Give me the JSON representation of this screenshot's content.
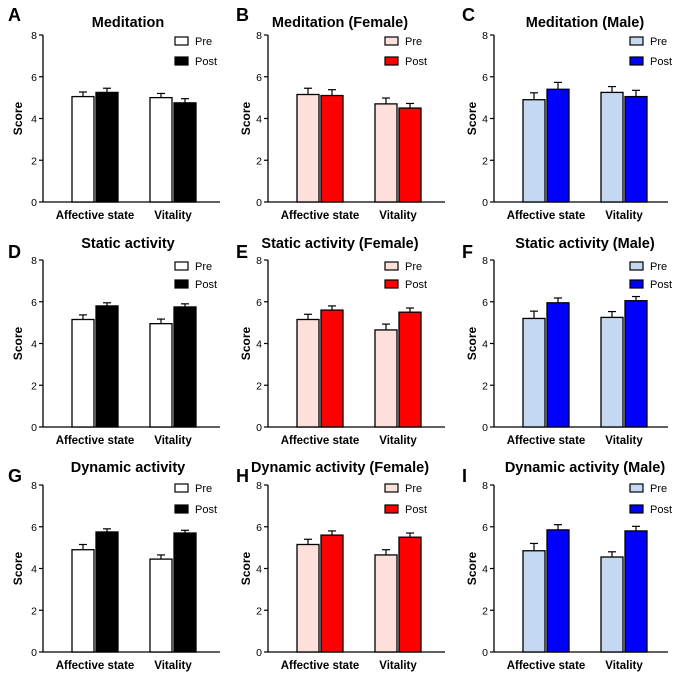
{
  "chart_data": [
    {
      "id": "A",
      "type": "bar",
      "letter": "A",
      "title": "Meditation",
      "categories": [
        "Affective state",
        "Vitality"
      ],
      "series": [
        {
          "name": "Pre",
          "values": [
            5.05,
            5.0
          ],
          "errors": [
            0.22,
            0.2
          ],
          "color": "#ffffff"
        },
        {
          "name": "Post",
          "values": [
            5.25,
            4.75
          ],
          "errors": [
            0.2,
            0.2
          ],
          "color": "#000000"
        }
      ],
      "ylabel": "Score",
      "xlabel": "",
      "ylim": [
        0,
        8
      ],
      "yticks": [
        "0",
        "2",
        "4",
        "6",
        "8"
      ],
      "legend": "top-right"
    },
    {
      "id": "B",
      "type": "bar",
      "letter": "B",
      "title": "Meditation (Female)",
      "categories": [
        "Affective state",
        "Vitality"
      ],
      "series": [
        {
          "name": "Pre",
          "values": [
            5.15,
            4.7
          ],
          "errors": [
            0.3,
            0.28
          ],
          "color": "#fde0dc"
        },
        {
          "name": "Post",
          "values": [
            5.1,
            4.5
          ],
          "errors": [
            0.28,
            0.22
          ],
          "color": "#ff0000"
        }
      ],
      "ylabel": "Score",
      "xlabel": "",
      "ylim": [
        0,
        8
      ],
      "yticks": [
        "0",
        "2",
        "4",
        "6",
        "8"
      ],
      "legend": "top-right"
    },
    {
      "id": "C",
      "type": "bar",
      "letter": "C",
      "title": "Meditation (Male)",
      "categories": [
        "Affective state",
        "Vitality"
      ],
      "series": [
        {
          "name": "Pre",
          "values": [
            4.9,
            5.25
          ],
          "errors": [
            0.33,
            0.28
          ],
          "color": "#c4d8f2"
        },
        {
          "name": "Post",
          "values": [
            5.4,
            5.05
          ],
          "errors": [
            0.33,
            0.3
          ],
          "color": "#0000ff"
        }
      ],
      "ylabel": "Score",
      "xlabel": "",
      "ylim": [
        0,
        8
      ],
      "yticks": [
        "0",
        "2",
        "4",
        "6",
        "8"
      ],
      "legend": "top-right"
    },
    {
      "id": "D",
      "type": "bar",
      "letter": "D",
      "title": "Static activity",
      "categories": [
        "Affective state",
        "Vitality"
      ],
      "series": [
        {
          "name": "Pre",
          "values": [
            5.15,
            4.95
          ],
          "errors": [
            0.22,
            0.22
          ],
          "color": "#ffffff"
        },
        {
          "name": "Post",
          "values": [
            5.8,
            5.75
          ],
          "errors": [
            0.15,
            0.15
          ],
          "color": "#000000"
        }
      ],
      "ylabel": "Score",
      "xlabel": "",
      "ylim": [
        0,
        8
      ],
      "yticks": [
        "0",
        "2",
        "4",
        "6",
        "8"
      ],
      "legend": "top-right"
    },
    {
      "id": "E",
      "type": "bar",
      "letter": "E",
      "title": "Static activity (Female)",
      "categories": [
        "Affective state",
        "Vitality"
      ],
      "series": [
        {
          "name": "Pre",
          "values": [
            5.15,
            4.65
          ],
          "errors": [
            0.25,
            0.28
          ],
          "color": "#fde0dc"
        },
        {
          "name": "Post",
          "values": [
            5.6,
            5.5
          ],
          "errors": [
            0.2,
            0.2
          ],
          "color": "#ff0000"
        }
      ],
      "ylabel": "Score",
      "xlabel": "",
      "ylim": [
        0,
        8
      ],
      "yticks": [
        "0",
        "2",
        "4",
        "6",
        "8"
      ],
      "legend": "top-right"
    },
    {
      "id": "F",
      "type": "bar",
      "letter": "F",
      "title": "Static activity (Male)",
      "categories": [
        "Affective state",
        "Vitality"
      ],
      "series": [
        {
          "name": "Pre",
          "values": [
            5.2,
            5.25
          ],
          "errors": [
            0.35,
            0.28
          ],
          "color": "#c4d8f2"
        },
        {
          "name": "Post",
          "values": [
            5.95,
            6.05
          ],
          "errors": [
            0.23,
            0.2
          ],
          "color": "#0000ff"
        }
      ],
      "ylabel": "Score",
      "xlabel": "",
      "ylim": [
        0,
        8
      ],
      "yticks": [
        "0",
        "2",
        "4",
        "6",
        "8"
      ],
      "legend": "top-right"
    },
    {
      "id": "G",
      "type": "bar",
      "letter": "G",
      "title": "Dynamic activity",
      "categories": [
        "Affective state",
        "Vitality"
      ],
      "series": [
        {
          "name": "Pre",
          "values": [
            4.9,
            4.45
          ],
          "errors": [
            0.25,
            0.2
          ],
          "color": "#ffffff"
        },
        {
          "name": "Post",
          "values": [
            5.75,
            5.7
          ],
          "errors": [
            0.15,
            0.13
          ],
          "color": "#000000"
        }
      ],
      "ylabel": "Score",
      "xlabel": "",
      "ylim": [
        0,
        8
      ],
      "yticks": [
        "0",
        "2",
        "4",
        "6",
        "8"
      ],
      "legend": "top-right"
    },
    {
      "id": "H",
      "type": "bar",
      "letter": "H",
      "title": "Dynamic activity (Female)",
      "categories": [
        "Affective state",
        "Vitality"
      ],
      "series": [
        {
          "name": "Pre",
          "values": [
            5.15,
            4.65
          ],
          "errors": [
            0.25,
            0.25
          ],
          "color": "#fde0dc"
        },
        {
          "name": "Post",
          "values": [
            5.6,
            5.5
          ],
          "errors": [
            0.2,
            0.2
          ],
          "color": "#ff0000"
        }
      ],
      "ylabel": "Score",
      "xlabel": "",
      "ylim": [
        0,
        8
      ],
      "yticks": [
        "0",
        "2",
        "4",
        "6",
        "8"
      ],
      "legend": "top-right"
    },
    {
      "id": "I",
      "type": "bar",
      "letter": "I",
      "title": "Dynamic activity (Male)",
      "categories": [
        "Affective state",
        "Vitality"
      ],
      "series": [
        {
          "name": "Pre",
          "values": [
            4.85,
            4.55
          ],
          "errors": [
            0.35,
            0.25
          ],
          "color": "#c4d8f2"
        },
        {
          "name": "Post",
          "values": [
            5.85,
            5.8
          ],
          "errors": [
            0.25,
            0.22
          ],
          "color": "#0000ff"
        }
      ],
      "ylabel": "Score",
      "xlabel": "",
      "ylim": [
        0,
        8
      ],
      "yticks": [
        "0",
        "2",
        "4",
        "6",
        "8"
      ],
      "legend": "top-right"
    }
  ]
}
